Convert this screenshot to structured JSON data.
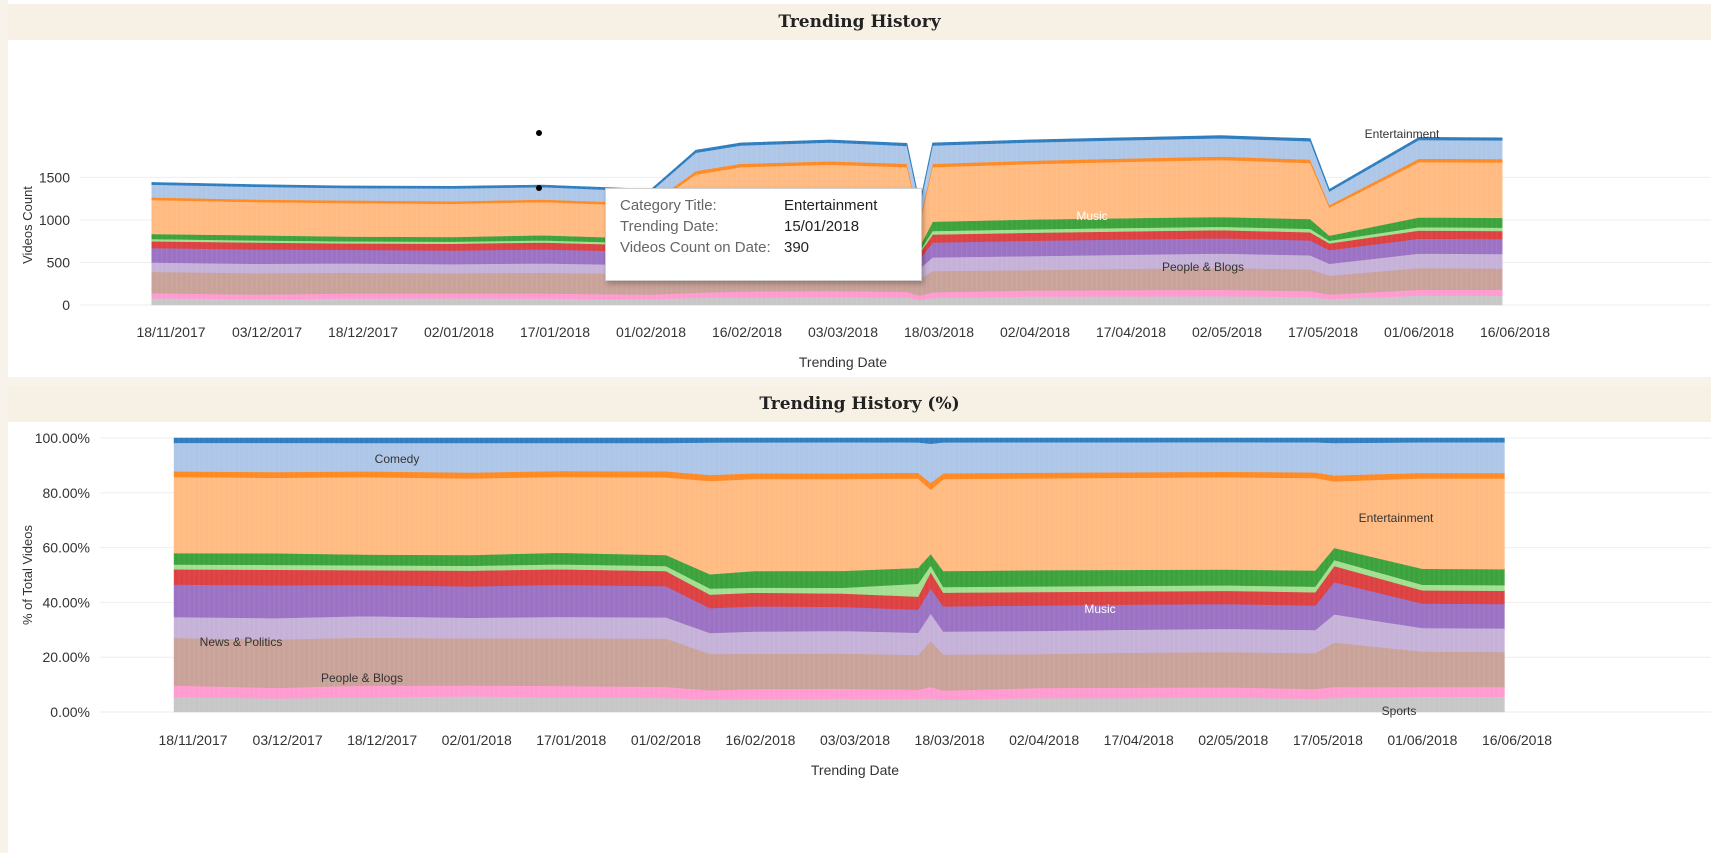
{
  "chart_data": [
    {
      "type": "area",
      "title": "Trending History",
      "xlabel": "Trending Date",
      "ylabel": "Videos Count",
      "x_tick_labels": [
        "18/11/2017",
        "03/12/2017",
        "18/12/2017",
        "02/01/2018",
        "17/01/2018",
        "01/02/2018",
        "16/02/2018",
        "03/03/2018",
        "18/03/2018",
        "02/04/2018",
        "17/04/2018",
        "02/05/2018",
        "17/05/2018",
        "01/06/2018",
        "16/06/2018"
      ],
      "y_tick_labels": [
        "0",
        "500",
        "1000",
        "1500"
      ],
      "ylim": [
        0,
        1880
      ],
      "stacked": true,
      "grid": true,
      "x": [
        "15/11/2017",
        "01/12/2017",
        "15/12/2017",
        "01/01/2018",
        "15/01/2018",
        "01/02/2018",
        "08/02/2018",
        "15/02/2018",
        "01/03/2018",
        "13/03/2018",
        "15/03/2018",
        "17/03/2018",
        "01/04/2018",
        "15/04/2018",
        "01/05/2018",
        "15/05/2018",
        "18/05/2018",
        "01/06/2018",
        "14/06/2018"
      ],
      "series": [
        {
          "name": "Sports",
          "color": "#c7c7c7",
          "values": [
            80,
            70,
            75,
            80,
            75,
            70,
            85,
            90,
            95,
            90,
            60,
            85,
            100,
            100,
            105,
            95,
            70,
            110,
            110
          ]
        },
        {
          "name": "",
          "color": "#ff9bd0",
          "values": [
            60,
            55,
            60,
            55,
            60,
            55,
            60,
            70,
            70,
            65,
            50,
            65,
            70,
            75,
            75,
            70,
            55,
            70,
            70
          ]
        },
        {
          "name": "People & Blogs",
          "color": "#c9a39a",
          "values": [
            250,
            250,
            245,
            240,
            245,
            240,
            240,
            245,
            250,
            240,
            200,
            250,
            240,
            250,
            255,
            255,
            220,
            255,
            250
          ]
        },
        {
          "name": "News & Politics",
          "color": "#c6b2d8",
          "values": [
            110,
            110,
            110,
            105,
            110,
            105,
            140,
            155,
            160,
            155,
            120,
            160,
            165,
            165,
            170,
            165,
            140,
            170,
            170
          ]
        },
        {
          "name": "Music",
          "color": "#9b72c4",
          "values": [
            170,
            170,
            160,
            160,
            165,
            155,
            165,
            175,
            170,
            160,
            110,
            175,
            180,
            180,
            180,
            175,
            160,
            175,
            175
          ]
        },
        {
          "name": "",
          "color": "#dd4141",
          "values": [
            80,
            80,
            75,
            80,
            80,
            75,
            90,
            95,
            95,
            90,
            70,
            95,
            95,
            95,
            95,
            95,
            80,
            95,
            95
          ]
        },
        {
          "name": "",
          "color": "#a3df91",
          "values": [
            25,
            25,
            25,
            25,
            25,
            25,
            40,
            35,
            40,
            90,
            30,
            40,
            40,
            40,
            40,
            40,
            30,
            40,
            40
          ]
        },
        {
          "name": "",
          "color": "#3ca23c",
          "values": [
            60,
            60,
            55,
            55,
            60,
            55,
            95,
            115,
            120,
            110,
            50,
            110,
            115,
            115,
            115,
            115,
            60,
            115,
            115
          ]
        },
        {
          "name": "Entertainment",
          "color": "#ffbb82",
          "values": [
            400,
            390,
            395,
            390,
            390,
            385,
            620,
            640,
            650,
            620,
            280,
            640,
            650,
            660,
            670,
            660,
            330,
            650,
            650
          ]
        },
        {
          "name": "",
          "color": "#ff8a24",
          "values": [
            30,
            30,
            30,
            30,
            30,
            30,
            40,
            40,
            40,
            40,
            30,
            40,
            40,
            40,
            40,
            40,
            30,
            40,
            40
          ]
        },
        {
          "name": "Comedy",
          "color": "#aec7e8",
          "values": [
            150,
            150,
            145,
            150,
            145,
            140,
            215,
            215,
            220,
            210,
            170,
            215,
            215,
            215,
            215,
            215,
            160,
            220,
            220
          ]
        },
        {
          "name": "",
          "color": "#2f7ebf",
          "values": [
            25,
            25,
            25,
            25,
            25,
            25,
            30,
            30,
            30,
            30,
            25,
            30,
            30,
            30,
            30,
            30,
            25,
            30,
            30
          ]
        }
      ],
      "annotations": [
        "Entertainment",
        "Music",
        "People & Blogs"
      ]
    },
    {
      "type": "area",
      "title": "Trending History (%)",
      "xlabel": "Trending Date",
      "ylabel": "% of Total Videos",
      "x_tick_labels": [
        "18/11/2017",
        "03/12/2017",
        "18/12/2017",
        "02/01/2018",
        "17/01/2018",
        "01/02/2018",
        "16/02/2018",
        "03/03/2018",
        "18/03/2018",
        "02/04/2018",
        "17/04/2018",
        "02/05/2018",
        "17/05/2018",
        "01/06/2018",
        "16/06/2018"
      ],
      "y_tick_labels": [
        "0.00%",
        "20.00%",
        "40.00%",
        "60.00%",
        "80.00%",
        "100.00%"
      ],
      "ylim": [
        0,
        100
      ],
      "stacked": true,
      "normalized": true,
      "grid": true,
      "annotations": [
        "Comedy",
        "Entertainment",
        "Music",
        "News & Politics",
        "People & Blogs",
        "Sports"
      ]
    }
  ],
  "tooltip": {
    "rows": [
      {
        "key": "Category Title:",
        "value": "Entertainment"
      },
      {
        "key": "Trending Date:",
        "value": "15/01/2018"
      },
      {
        "key": "Videos Count on Date:",
        "value": "390"
      }
    ]
  }
}
